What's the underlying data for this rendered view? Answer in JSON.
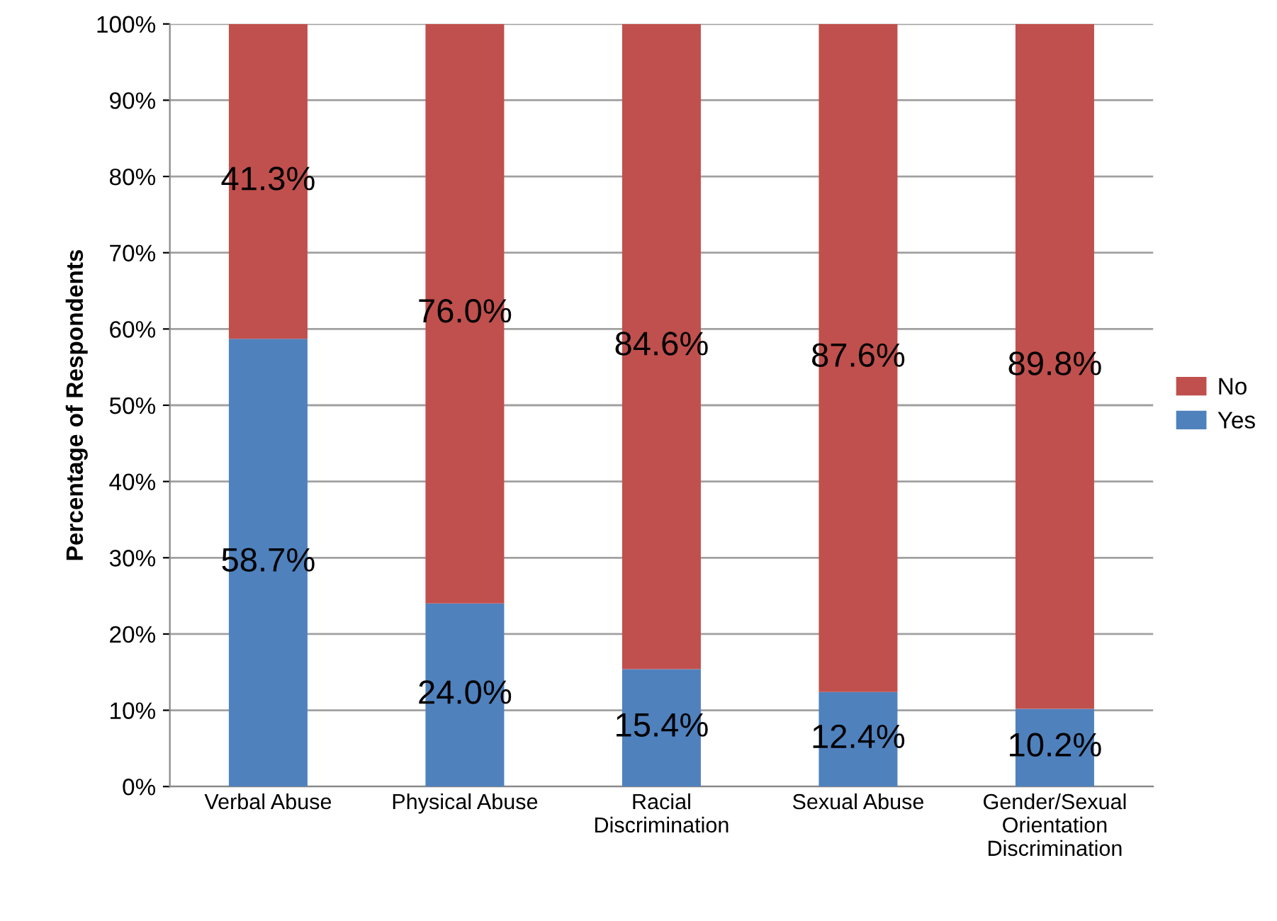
{
  "chart_data": {
    "type": "bar",
    "stacked": true,
    "ylabel": "Percentage of Respondents",
    "categories": [
      "Verbal Abuse",
      "Physical Abuse",
      "Racial\nDiscrimination",
      "Sexual Abuse",
      "Gender/Sexual\nOrientation\nDiscrimination"
    ],
    "series": [
      {
        "name": "Yes",
        "color": "#4f81bd",
        "values": [
          58.7,
          24.0,
          15.4,
          12.4,
          10.2
        ],
        "value_labels": [
          "58.7%",
          "24.0%",
          "15.4%",
          "12.4%",
          "10.2%"
        ]
      },
      {
        "name": "No",
        "color": "#c0504d",
        "values": [
          41.3,
          76.0,
          84.6,
          87.6,
          89.8
        ],
        "value_labels": [
          "41.3%",
          "76.0%",
          "84.6%",
          "87.6%",
          "89.8%"
        ]
      }
    ],
    "ylim": [
      0,
      100
    ],
    "yticks": [
      {
        "value": 0,
        "label": "0%"
      },
      {
        "value": 10,
        "label": "10%"
      },
      {
        "value": 20,
        "label": "20%"
      },
      {
        "value": 30,
        "label": "30%"
      },
      {
        "value": 40,
        "label": "40%"
      },
      {
        "value": 50,
        "label": "50%"
      },
      {
        "value": 60,
        "label": "60%"
      },
      {
        "value": 70,
        "label": "70%"
      },
      {
        "value": 80,
        "label": "80%"
      },
      {
        "value": 90,
        "label": "90%"
      },
      {
        "value": 100,
        "label": "100%"
      }
    ],
    "grid": "y",
    "legend": "right"
  }
}
